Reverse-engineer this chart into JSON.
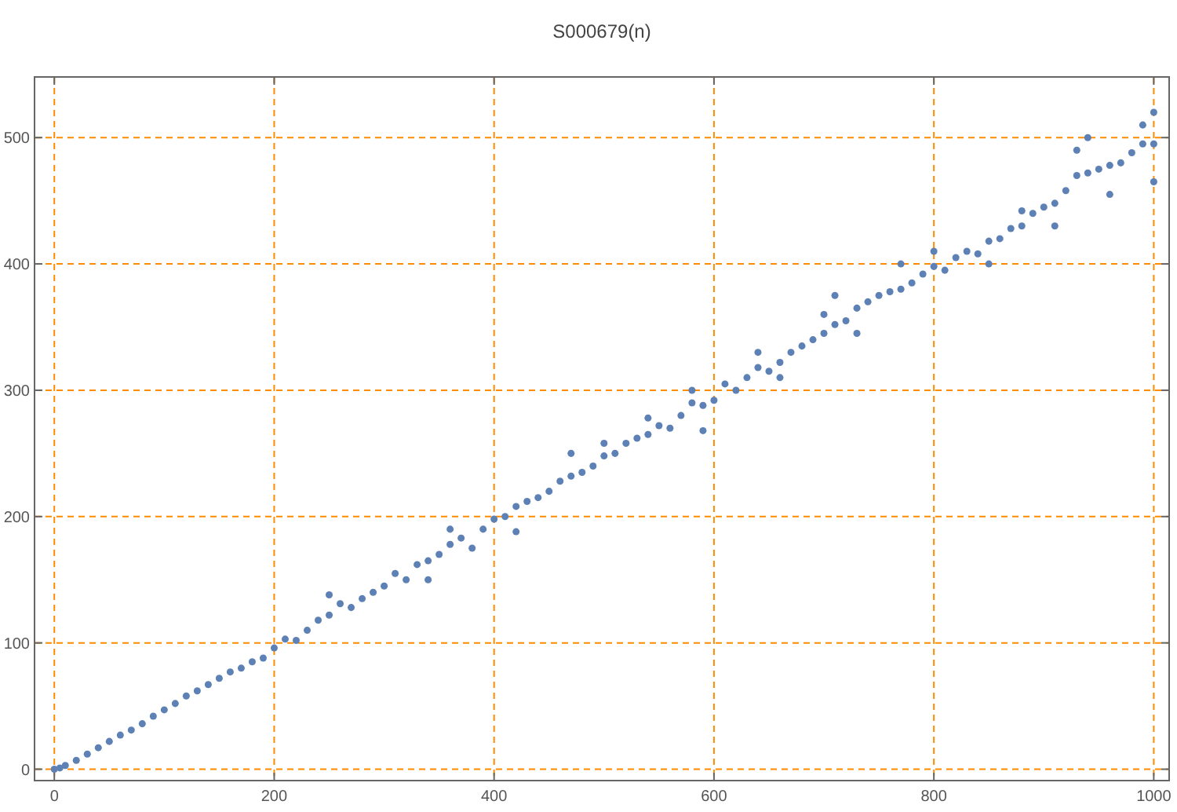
{
  "chart_data": {
    "type": "scatter",
    "title": "S000679(n)",
    "marker": "circle",
    "grid": true,
    "xlim": [
      -18,
      1014
    ],
    "ylim": [
      -9,
      548
    ],
    "xticks": [
      0,
      200,
      400,
      600,
      800,
      1000
    ],
    "yticks": [
      0,
      100,
      200,
      300,
      400,
      500
    ],
    "series": [
      {
        "color": "#5e81b5",
        "x": [
          0,
          5,
          10,
          20,
          30,
          40,
          50,
          60,
          70,
          80,
          90,
          100,
          110,
          120,
          130,
          140,
          150,
          160,
          170,
          180,
          190,
          200,
          210,
          220,
          230,
          240,
          250,
          260,
          270,
          280,
          290,
          300,
          310,
          320,
          330,
          340,
          350,
          360,
          370,
          380,
          390,
          400,
          410,
          420,
          430,
          440,
          450,
          460,
          470,
          480,
          490,
          500,
          510,
          520,
          530,
          540,
          550,
          560,
          570,
          580,
          590,
          600,
          610,
          620,
          630,
          640,
          650,
          660,
          670,
          680,
          690,
          700,
          710,
          720,
          730,
          740,
          750,
          760,
          770,
          780,
          790,
          800,
          810,
          820,
          830,
          840,
          850,
          860,
          870,
          880,
          890,
          900,
          910,
          920,
          930,
          940,
          950,
          960,
          970,
          980,
          990,
          1000,
          250,
          340,
          360,
          420,
          470,
          500,
          540,
          580,
          590,
          640,
          710,
          730,
          770,
          800,
          850,
          880,
          910,
          930,
          960,
          990,
          1000,
          1000,
          940,
          660,
          700
        ],
        "values": [
          0,
          1,
          3,
          7,
          12,
          17,
          22,
          27,
          31,
          36,
          42,
          47,
          52,
          58,
          62,
          67,
          72,
          77,
          80,
          85,
          88,
          96,
          103,
          102,
          110,
          118,
          122,
          131,
          128,
          135,
          140,
          145,
          155,
          150,
          162,
          165,
          170,
          178,
          183,
          175,
          190,
          198,
          200,
          208,
          212,
          215,
          220,
          228,
          232,
          235,
          240,
          248,
          250,
          258,
          262,
          265,
          272,
          270,
          280,
          290,
          288,
          292,
          305,
          300,
          310,
          318,
          315,
          322,
          330,
          335,
          340,
          345,
          352,
          355,
          365,
          370,
          375,
          378,
          380,
          385,
          392,
          398,
          395,
          405,
          410,
          408,
          418,
          420,
          428,
          430,
          440,
          445,
          448,
          458,
          470,
          472,
          475,
          478,
          480,
          488,
          495,
          495,
          138,
          150,
          190,
          188,
          250,
          258,
          278,
          300,
          268,
          330,
          375,
          345,
          400,
          410,
          400,
          442,
          430,
          490,
          455,
          510,
          520,
          465,
          500,
          310,
          360
        ]
      }
    ]
  }
}
